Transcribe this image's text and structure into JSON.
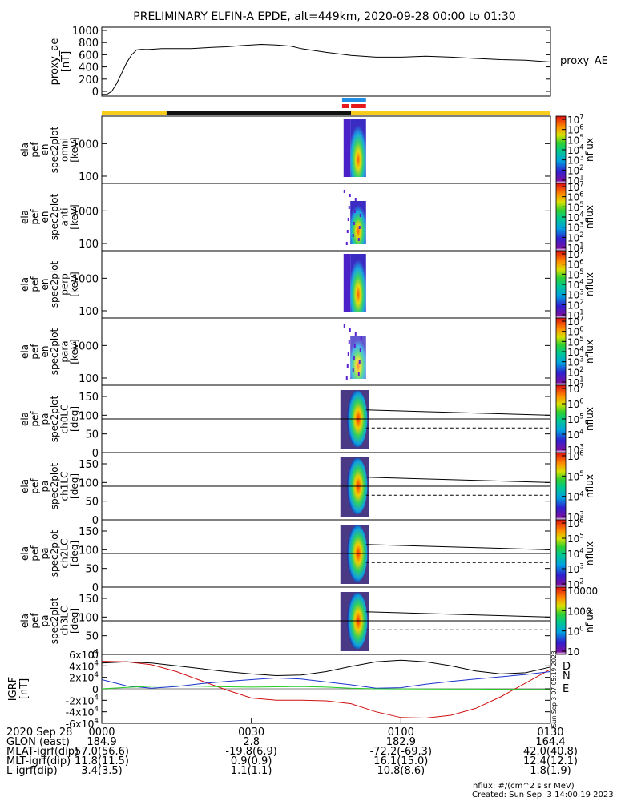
{
  "title": "PRELIMINARY ELFIN-A EPDE, alt=449km, 2020-09-28 00:00 to 01:30",
  "chart_data": [
    {
      "type": "line",
      "panel": "proxy_ae",
      "ylabel": [
        "proxy_ae",
        "[nT]"
      ],
      "series_label": "proxy_AE",
      "ylim": [
        0,
        1000
      ],
      "yticks": [
        "0",
        "200",
        "400",
        "600",
        "800",
        "1000"
      ],
      "x_minutes": [
        0,
        1,
        2,
        3,
        4,
        5,
        6,
        7,
        8,
        9,
        10,
        12,
        15,
        18,
        20,
        22,
        25,
        28,
        30,
        32,
        35,
        38,
        40,
        45,
        50,
        55,
        60,
        65,
        70,
        75,
        80,
        85,
        90
      ],
      "values": [
        -50,
        -50,
        0,
        130,
        300,
        470,
        600,
        680,
        690,
        685,
        690,
        700,
        700,
        700,
        710,
        720,
        730,
        750,
        760,
        770,
        760,
        740,
        700,
        640,
        590,
        560,
        560,
        575,
        560,
        540,
        520,
        510,
        480
      ]
    },
    {
      "type": "heatmap",
      "panel": "omni",
      "ylabel": [
        "ela",
        "pef",
        "en",
        "spec2plot",
        "omni",
        "[keV]"
      ],
      "yscale": "log",
      "yticks": [
        "100",
        "1000"
      ],
      "colorbar_label": "nflux",
      "colorbar_ticks": [
        "101",
        "102",
        "103",
        "104",
        "105",
        "106",
        "107"
      ],
      "active_x_minutes": [
        48.5,
        52.5
      ]
    },
    {
      "type": "heatmap",
      "panel": "anti",
      "ylabel": [
        "ela",
        "pef",
        "en",
        "spec2plot",
        "anti",
        "[keV]"
      ],
      "yscale": "log",
      "yticks": [
        "100",
        "1000"
      ],
      "colorbar_label": "nflux",
      "colorbar_ticks": [
        "101",
        "102",
        "103",
        "104",
        "105",
        "106",
        "107"
      ],
      "active_x_minutes": [
        48.5,
        52.5
      ]
    },
    {
      "type": "heatmap",
      "panel": "perp",
      "ylabel": [
        "ela",
        "pef",
        "en",
        "spec2plot",
        "perp",
        "[keV]"
      ],
      "yscale": "log",
      "yticks": [
        "100",
        "1000"
      ],
      "colorbar_label": "nflux",
      "colorbar_ticks": [
        "101",
        "102",
        "103",
        "104",
        "105",
        "106",
        "107"
      ],
      "active_x_minutes": [
        48.5,
        52.5
      ]
    },
    {
      "type": "heatmap",
      "panel": "para",
      "ylabel": [
        "ela",
        "pef",
        "en",
        "spec2plot",
        "para",
        "[keV]"
      ],
      "yscale": "log",
      "yticks": [
        "100",
        "1000"
      ],
      "colorbar_label": "nflux",
      "colorbar_ticks": [
        "101",
        "102",
        "103",
        "104",
        "105",
        "106",
        "107"
      ],
      "active_x_minutes": [
        48.5,
        52.5
      ]
    },
    {
      "type": "heatmap",
      "panel": "ch0LC",
      "ylabel": [
        "ela",
        "pef",
        "pa",
        "spec2plot",
        "ch0LC",
        "[deg]"
      ],
      "ylim": [
        0,
        180
      ],
      "yticks": [
        "0",
        "50",
        "100",
        "150"
      ],
      "colorbar_label": "nflux",
      "colorbar_ticks": [
        "103",
        "104",
        "105",
        "106",
        "107"
      ],
      "reference_line_deg": 90,
      "loss_cone": {
        "x_minutes": [
          53,
          90
        ],
        "solid_deg": [
          114,
          100
        ],
        "dashed_deg": [
          66,
          66
        ]
      }
    },
    {
      "type": "heatmap",
      "panel": "ch1LC",
      "ylabel": [
        "ela",
        "pef",
        "pa",
        "spec2plot",
        "ch1LC",
        "[deg]"
      ],
      "ylim": [
        0,
        180
      ],
      "yticks": [
        "0",
        "50",
        "100",
        "150"
      ],
      "colorbar_label": "nflux",
      "colorbar_ticks": [
        "103",
        "104",
        "105",
        "106"
      ],
      "reference_line_deg": 90,
      "loss_cone": {
        "x_minutes": [
          53,
          90
        ],
        "solid_deg": [
          114,
          100
        ],
        "dashed_deg": [
          66,
          66
        ]
      }
    },
    {
      "type": "heatmap",
      "panel": "ch2LC",
      "ylabel": [
        "ela",
        "pef",
        "pa",
        "spec2plot",
        "ch2LC",
        "[deg]"
      ],
      "ylim": [
        0,
        180
      ],
      "yticks": [
        "0",
        "50",
        "100",
        "150"
      ],
      "colorbar_label": "nflux",
      "colorbar_ticks": [
        "102",
        "103",
        "104",
        "105",
        "106"
      ],
      "reference_line_deg": 90,
      "loss_cone": {
        "x_minutes": [
          53,
          90
        ],
        "solid_deg": [
          114,
          100
        ],
        "dashed_deg": [
          66,
          66
        ]
      }
    },
    {
      "type": "heatmap",
      "panel": "ch3LC",
      "ylabel": [
        "ela",
        "pef",
        "pa",
        "spec2plot",
        "ch3LC",
        "[deg]"
      ],
      "ylim": [
        0,
        180
      ],
      "yticks": [
        "0",
        "50",
        "100",
        "150"
      ],
      "colorbar_label": "nflux",
      "colorbar_ticks": [
        "10",
        "100",
        "1000",
        "10000"
      ],
      "reference_line_deg": 90,
      "loss_cone": {
        "x_minutes": [
          53,
          90
        ],
        "solid_deg": [
          114,
          100
        ],
        "dashed_deg": [
          66,
          66
        ]
      }
    },
    {
      "type": "line",
      "panel": "IGRF",
      "ylabel": [
        "IGRF",
        "[nT]"
      ],
      "ylim": [
        -60000,
        60000
      ],
      "yticks": [
        "-6x10^4",
        "-4x10^4",
        "-2x10^4",
        "0",
        "2x10^4",
        "4x10^4",
        "6x10^4"
      ],
      "legend_placement": "right",
      "side_text": "Sun Sep 3 07:05:19 2023",
      "x_minutes": [
        0,
        5,
        10,
        15,
        20,
        25,
        30,
        35,
        40,
        45,
        50,
        55,
        60,
        65,
        70,
        75,
        80,
        85,
        90
      ],
      "series": [
        {
          "name": "D",
          "color": "#d01010",
          "values": [
            48000,
            47000,
            42000,
            30000,
            14000,
            -2000,
            -16000,
            -20000,
            -20000,
            -21000,
            -26000,
            -40000,
            -50000,
            -51000,
            -46000,
            -34000,
            -14000,
            10000,
            34000
          ]
        },
        {
          "name": "N",
          "color": "#1a33cc",
          "values": [
            16000,
            5000,
            1000,
            4000,
            9000,
            13000,
            16000,
            19000,
            17000,
            12000,
            7000,
            1000,
            2000,
            8000,
            13000,
            17000,
            21000,
            25000,
            30000
          ]
        },
        {
          "name": "E",
          "color": "#22cc22",
          "values": [
            0,
            2500,
            4500,
            5000,
            4500,
            3500,
            3000,
            3500,
            4000,
            3000,
            1000,
            0,
            -200,
            -400,
            -500,
            -600,
            -800,
            -1000,
            -1200
          ]
        },
        {
          "name": "",
          "color": "#000000",
          "values": [
            45000,
            47000,
            45000,
            40000,
            35000,
            30000,
            26000,
            23000,
            24000,
            30000,
            39000,
            47000,
            50000,
            47000,
            40000,
            31000,
            26000,
            28000,
            38000
          ]
        }
      ]
    }
  ],
  "xaxis": {
    "date": "2020 Sep 28",
    "ticks": [
      "0000",
      "0030",
      "0100",
      "0130"
    ],
    "tick_minutes": [
      0,
      30,
      60,
      90
    ],
    "rows": [
      {
        "label": "GLON (east)",
        "values": [
          "184.9",
          "2.8",
          "182.9",
          "164.4"
        ]
      },
      {
        "label": "MLAT-igrf(dip)",
        "values": [
          "57.0(56.6)",
          "-19.8(6.9)",
          "-72.2(-69.3)",
          "42.0(40.8)"
        ]
      },
      {
        "label": "MLT-igrf(dip)",
        "values": [
          "11.8(11.5)",
          "0.9(0.9)",
          "16.1(15.0)",
          "12.4(12.1)"
        ]
      },
      {
        "label": "L-igrf(dip)",
        "values": [
          "3.4(3.5)",
          "1.1(1.1)",
          "10.8(8.6)",
          "1.8(1.9)"
        ]
      }
    ]
  },
  "status_bars": {
    "science_zones": [
      {
        "color": "#1f8fe8",
        "x_minutes": [
          48.2,
          53
        ]
      },
      {
        "color": "#e41a1c",
        "x_minutes": [
          50,
          53
        ]
      },
      {
        "color": "#e41a1c",
        "x_minutes": [
          48.2,
          49.6
        ]
      }
    ],
    "orbit": [
      {
        "color": "#f8cc1b",
        "x_minutes": [
          0,
          13
        ]
      },
      {
        "color": "#111111",
        "x_minutes": [
          13,
          50
        ]
      },
      {
        "color": "#f8cc1b",
        "x_minutes": [
          50,
          90
        ]
      }
    ]
  },
  "footer": {
    "units": "nflux: #/(cm^2 s sr MeV)",
    "created": "Created: Sun Sep  3 14:00:19 2023"
  }
}
